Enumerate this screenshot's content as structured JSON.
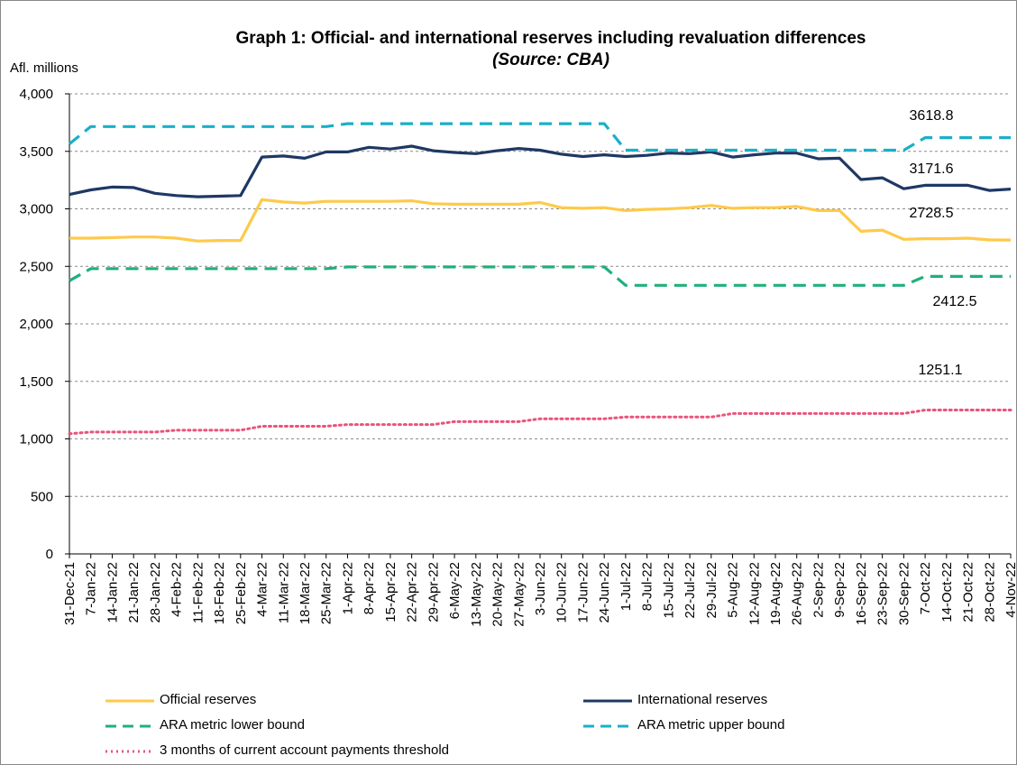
{
  "chart_data": {
    "type": "line",
    "title": "Graph 1: Official- and international reserves including revaluation differences",
    "subtitle": "(Source: CBA)",
    "ylabel": "Afl. millions",
    "ylim": [
      0,
      4000
    ],
    "yticks": [
      "0",
      "500",
      "1,000",
      "1,500",
      "2,000",
      "2,500",
      "3,000",
      "3,500",
      "4,000"
    ],
    "ytick_values": [
      0,
      500,
      1000,
      1500,
      2000,
      2500,
      3000,
      3500,
      4000
    ],
    "grid": true,
    "legend_placement": "bottom",
    "categories": [
      "31-Dec-21",
      "7-Jan-22",
      "14-Jan-22",
      "21-Jan-22",
      "28-Jan-22",
      "4-Feb-22",
      "11-Feb-22",
      "18-Feb-22",
      "25-Feb-22",
      "4-Mar-22",
      "11-Mar-22",
      "18-Mar-22",
      "25-Mar-22",
      "1-Apr-22",
      "8-Apr-22",
      "15-Apr-22",
      "22-Apr-22",
      "29-Apr-22",
      "6-May-22",
      "13-May-22",
      "20-May-22",
      "27-May-22",
      "3-Jun-22",
      "10-Jun-22",
      "17-Jun-22",
      "24-Jun-22",
      "1-Jul-22",
      "8-Jul-22",
      "15-Jul-22",
      "22-Jul-22",
      "29-Jul-22",
      "5-Aug-22",
      "12-Aug-22",
      "19-Aug-22",
      "26-Aug-22",
      "2-Sep-22",
      "9-Sep-22",
      "16-Sep-22",
      "23-Sep-22",
      "30-Sep-22",
      "7-Oct-22",
      "14-Oct-22",
      "21-Oct-22",
      "28-Oct-22",
      "4-Nov-22"
    ],
    "series": [
      {
        "name": "Official reserves",
        "color": "#FFC94A",
        "style": "solid",
        "values": [
          2745,
          2745,
          2750,
          2755,
          2755,
          2745,
          2720,
          2725,
          2725,
          3080,
          3060,
          3050,
          3065,
          3065,
          3065,
          3065,
          3070,
          3045,
          3040,
          3040,
          3040,
          3040,
          3055,
          3010,
          3005,
          3010,
          2985,
          2995,
          3000,
          3010,
          3030,
          3005,
          3010,
          3010,
          3020,
          2985,
          2985,
          2805,
          2815,
          2735,
          2740,
          2740,
          2745,
          2730,
          2728.5
        ]
      },
      {
        "name": "International reserves",
        "color": "#1F3864",
        "style": "solid",
        "values": [
          3125,
          3165,
          3190,
          3185,
          3135,
          3115,
          3105,
          3110,
          3115,
          3450,
          3460,
          3440,
          3495,
          3495,
          3535,
          3520,
          3545,
          3505,
          3490,
          3480,
          3505,
          3525,
          3510,
          3475,
          3455,
          3470,
          3455,
          3465,
          3485,
          3480,
          3495,
          3450,
          3470,
          3485,
          3485,
          3435,
          3440,
          3255,
          3270,
          3175,
          3205,
          3205,
          3205,
          3160,
          3171.6
        ]
      },
      {
        "name": "ARA metric lower bound",
        "color": "#20B07A",
        "style": "dashed",
        "values": [
          2375,
          2480,
          2480,
          2480,
          2480,
          2480,
          2480,
          2480,
          2480,
          2480,
          2480,
          2480,
          2480,
          2495,
          2495,
          2495,
          2495,
          2495,
          2495,
          2495,
          2495,
          2495,
          2495,
          2495,
          2495,
          2495,
          2335,
          2335,
          2335,
          2335,
          2335,
          2335,
          2335,
          2335,
          2335,
          2335,
          2335,
          2335,
          2335,
          2335,
          2412.5,
          2412.5,
          2412.5,
          2412.5,
          2412.5
        ]
      },
      {
        "name": "ARA metric upper bound",
        "color": "#1BAFC8",
        "style": "dashed",
        "values": [
          3565,
          3715,
          3715,
          3715,
          3715,
          3715,
          3715,
          3715,
          3715,
          3715,
          3715,
          3715,
          3715,
          3740,
          3740,
          3740,
          3740,
          3740,
          3740,
          3740,
          3740,
          3740,
          3740,
          3740,
          3740,
          3740,
          3510,
          3510,
          3510,
          3510,
          3510,
          3510,
          3510,
          3510,
          3510,
          3510,
          3510,
          3510,
          3510,
          3510,
          3618.8,
          3618.8,
          3618.8,
          3618.8,
          3618.8
        ]
      },
      {
        "name": "3 months of current account payments threshold",
        "color": "#E8547A",
        "style": "dotted",
        "values": [
          1045,
          1060,
          1060,
          1060,
          1060,
          1075,
          1075,
          1075,
          1075,
          1110,
          1110,
          1110,
          1110,
          1125,
          1125,
          1125,
          1125,
          1125,
          1150,
          1150,
          1150,
          1150,
          1175,
          1175,
          1175,
          1175,
          1190,
          1190,
          1190,
          1190,
          1190,
          1220,
          1220,
          1220,
          1220,
          1220,
          1220,
          1220,
          1220,
          1220,
          1251.1,
          1251.1,
          1251.1,
          1251.1,
          1251.1
        ]
      }
    ],
    "annotations": [
      "3618.8",
      "3171.6",
      "2728.5",
      "2412.5",
      "1251.1"
    ]
  }
}
